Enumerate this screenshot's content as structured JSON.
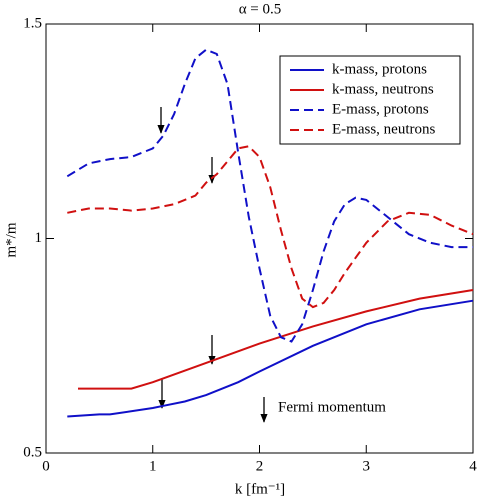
{
  "chart_data": {
    "type": "line",
    "title": "α = 0.5",
    "xlabel": "k [fm⁻¹]",
    "ylabel": "m*/m",
    "xlim": [
      0,
      4
    ],
    "ylim": [
      0.5,
      1.5
    ],
    "xticks": [
      0,
      1,
      2,
      3,
      4
    ],
    "yticks": [
      0.5,
      1,
      1.5
    ],
    "legend": "upper right",
    "annotation": "Fermi momentum",
    "series": [
      {
        "name": "k-mass, protons",
        "color": "#1010c8",
        "style": "solid",
        "x": [
          0.2,
          0.5,
          0.6,
          1.0,
          1.1,
          1.3,
          1.5,
          1.8,
          2.0,
          2.5,
          3.0,
          3.5,
          4.0
        ],
        "values": [
          0.585,
          0.59,
          0.59,
          0.605,
          0.61,
          0.62,
          0.635,
          0.665,
          0.69,
          0.75,
          0.8,
          0.835,
          0.855
        ]
      },
      {
        "name": "k-mass, neutrons",
        "color": "#d01010",
        "style": "solid",
        "x": [
          0.3,
          0.8,
          1.0,
          1.5,
          2.0,
          2.5,
          3.0,
          3.5,
          4.0
        ],
        "values": [
          0.65,
          0.65,
          0.665,
          0.71,
          0.755,
          0.795,
          0.83,
          0.86,
          0.88
        ]
      },
      {
        "name": "E-mass, protons",
        "color": "#1010c8",
        "style": "dashed",
        "x": [
          0.2,
          0.4,
          0.6,
          0.8,
          1.0,
          1.1,
          1.2,
          1.3,
          1.4,
          1.5,
          1.6,
          1.7,
          1.8,
          1.9,
          2.0,
          2.1,
          2.2,
          2.3,
          2.4,
          2.5,
          2.6,
          2.7,
          2.8,
          2.9,
          3.0,
          3.2,
          3.4,
          3.6,
          3.8,
          4.0
        ],
        "values": [
          1.145,
          1.175,
          1.185,
          1.19,
          1.21,
          1.24,
          1.29,
          1.36,
          1.42,
          1.44,
          1.43,
          1.36,
          1.2,
          1.05,
          0.93,
          0.82,
          0.77,
          0.76,
          0.8,
          0.88,
          0.97,
          1.04,
          1.08,
          1.095,
          1.09,
          1.05,
          1.01,
          0.99,
          0.98,
          0.98
        ]
      },
      {
        "name": "E-mass, neutrons",
        "color": "#d01010",
        "style": "dashed",
        "x": [
          0.2,
          0.4,
          0.6,
          0.8,
          1.0,
          1.2,
          1.4,
          1.5,
          1.6,
          1.7,
          1.8,
          1.9,
          2.0,
          2.1,
          2.2,
          2.3,
          2.4,
          2.5,
          2.6,
          2.7,
          2.8,
          3.0,
          3.2,
          3.4,
          3.6,
          3.8,
          4.0
        ],
        "values": [
          1.06,
          1.07,
          1.07,
          1.065,
          1.07,
          1.08,
          1.1,
          1.13,
          1.15,
          1.18,
          1.21,
          1.215,
          1.19,
          1.12,
          1.02,
          0.93,
          0.86,
          0.84,
          0.85,
          0.88,
          0.92,
          0.99,
          1.04,
          1.06,
          1.055,
          1.03,
          1.01
        ]
      }
    ]
  }
}
